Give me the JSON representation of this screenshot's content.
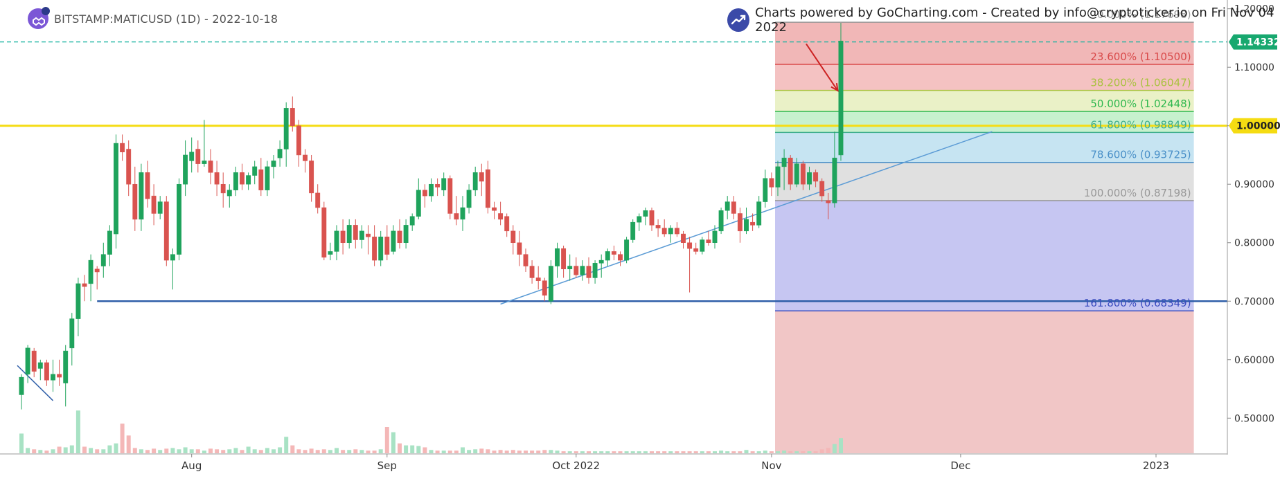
{
  "header": {
    "symbol_text": "BITSTAMP:MATICUSD (1D) - 2022-10-18",
    "credit_text": "Charts powered by GoCharting.com - Created by info@cryptoticker.io on Fri Nov 04 2022"
  },
  "colors": {
    "up": "#1fa35c",
    "down": "#d9534f",
    "vol_up": "#a8e2c4",
    "vol_down": "#f4b7b7",
    "price_line": "#17b3a0",
    "yellow": "#f5dc12",
    "trend": "#5b9bd5",
    "support": "#2e5ea8"
  },
  "chart_data": {
    "type": "candlestick",
    "title": "",
    "xlabel": "",
    "ylabel": "",
    "ylim": [
      0.44,
      1.215
    ],
    "y_ticks": [
      "1.20000",
      "1.10000",
      "1.00000",
      "0.90000",
      "0.80000",
      "0.70000",
      "0.60000",
      "0.50000"
    ],
    "y_tick_values": [
      1.2,
      1.1,
      1.0,
      0.9,
      0.8,
      0.7,
      0.6,
      0.5
    ],
    "x_ticks": [
      {
        "label": "Aug",
        "index": 27
      },
      {
        "label": "Sep",
        "index": 58
      },
      {
        "label": "Oct 2022",
        "index": 88
      },
      {
        "label": "Nov",
        "index": 119
      },
      {
        "label": "Dec",
        "index": 149
      },
      {
        "label": "2023",
        "index": 180
      }
    ],
    "last_price": {
      "value": 1.14332,
      "label": "1.14332"
    },
    "yellow_level": {
      "value": 1.0,
      "label": "1.00000"
    },
    "support_level": {
      "value": 0.7,
      "start_index": 12
    },
    "trendline": {
      "start": {
        "index": 76,
        "value": 0.695
      },
      "end": {
        "index": 154,
        "value": 0.99
      }
    },
    "small_trendline": {
      "start": {
        "index": 0,
        "value": 0.59
      },
      "end": {
        "index": 5,
        "value": 0.53
      }
    },
    "arrow": {
      "from": {
        "index": 124.5,
        "value": 1.14
      },
      "to": {
        "index": 129.5,
        "value": 1.06
      }
    },
    "fib": {
      "start_index": 120,
      "end_index": 186,
      "levels": [
        {
          "ratio": "0.000%",
          "value": 1.17698,
          "label": "0.000% (1.17698)",
          "color": "#999999"
        },
        {
          "ratio": "23.600%",
          "value": 1.105,
          "label": "23.600% (1.10500)",
          "color": "#d94a4a"
        },
        {
          "ratio": "38.200%",
          "value": 1.06047,
          "label": "38.200% (1.06047)",
          "color": "#a9c23f"
        },
        {
          "ratio": "50.000%",
          "value": 1.02448,
          "label": "50.000% (1.02448)",
          "color": "#2fb84f"
        },
        {
          "ratio": "61.800%",
          "value": 0.98849,
          "label": "61.800% (0.98849)",
          "color": "#3fae8e"
        },
        {
          "ratio": "78.600%",
          "value": 0.93725,
          "label": "78.600% (0.93725)",
          "color": "#4a90c8"
        },
        {
          "ratio": "100.000%",
          "value": 0.87198,
          "label": "100.000% (0.87198)",
          "color": "#999999"
        },
        {
          "ratio": "161.800%",
          "value": 0.68349,
          "label": "161.800% (0.68349)",
          "color": "#3a4dbf"
        }
      ],
      "zones": [
        {
          "from": 1.17698,
          "to": 1.105,
          "color": "#eeaaaa"
        },
        {
          "from": 1.105,
          "to": 1.06047,
          "color": "#f2b7b7"
        },
        {
          "from": 1.06047,
          "to": 1.02448,
          "color": "#e6efbd"
        },
        {
          "from": 1.02448,
          "to": 0.98849,
          "color": "#bdeec6"
        },
        {
          "from": 0.98849,
          "to": 0.93725,
          "color": "#bcdff0"
        },
        {
          "from": 0.93725,
          "to": 0.87198,
          "color": "#dadada"
        },
        {
          "from": 0.87198,
          "to": 0.68349,
          "color": "#bcbcf0"
        },
        {
          "from": 0.68349,
          "to": 0.44,
          "color": "#efbcbc"
        }
      ]
    },
    "candles": [
      [
        0.54,
        0.575,
        0.515,
        0.57,
        0.3
      ],
      [
        0.575,
        0.625,
        0.56,
        0.62,
        0.08
      ],
      [
        0.615,
        0.62,
        0.57,
        0.58,
        0.06
      ],
      [
        0.585,
        0.6,
        0.565,
        0.595,
        0.05
      ],
      [
        0.595,
        0.6,
        0.555,
        0.565,
        0.04
      ],
      [
        0.565,
        0.6,
        0.545,
        0.575,
        0.06
      ],
      [
        0.575,
        0.6,
        0.555,
        0.57,
        0.1
      ],
      [
        0.56,
        0.625,
        0.52,
        0.615,
        0.09
      ],
      [
        0.62,
        0.68,
        0.59,
        0.67,
        0.12
      ],
      [
        0.67,
        0.74,
        0.64,
        0.73,
        0.65
      ],
      [
        0.73,
        0.745,
        0.7,
        0.725,
        0.1
      ],
      [
        0.73,
        0.78,
        0.7,
        0.77,
        0.08
      ],
      [
        0.755,
        0.76,
        0.72,
        0.75,
        0.06
      ],
      [
        0.76,
        0.8,
        0.74,
        0.78,
        0.06
      ],
      [
        0.78,
        0.83,
        0.76,
        0.82,
        0.12
      ],
      [
        0.815,
        0.985,
        0.79,
        0.97,
        0.15
      ],
      [
        0.97,
        0.985,
        0.94,
        0.955,
        0.45
      ],
      [
        0.96,
        0.975,
        0.88,
        0.9,
        0.27
      ],
      [
        0.9,
        0.93,
        0.82,
        0.84,
        0.08
      ],
      [
        0.84,
        0.935,
        0.82,
        0.92,
        0.06
      ],
      [
        0.92,
        0.94,
        0.86,
        0.875,
        0.05
      ],
      [
        0.88,
        0.9,
        0.83,
        0.85,
        0.07
      ],
      [
        0.85,
        0.88,
        0.84,
        0.87,
        0.05
      ],
      [
        0.87,
        0.88,
        0.76,
        0.77,
        0.07
      ],
      [
        0.77,
        0.79,
        0.72,
        0.78,
        0.08
      ],
      [
        0.78,
        0.91,
        0.77,
        0.9,
        0.06
      ],
      [
        0.9,
        0.975,
        0.88,
        0.95,
        0.09
      ],
      [
        0.94,
        0.98,
        0.92,
        0.955,
        0.06
      ],
      [
        0.96,
        0.975,
        0.92,
        0.935,
        0.06
      ],
      [
        0.935,
        1.01,
        0.93,
        0.94,
        0.04
      ],
      [
        0.94,
        0.96,
        0.9,
        0.92,
        0.07
      ],
      [
        0.92,
        0.94,
        0.88,
        0.9,
        0.06
      ],
      [
        0.9,
        0.92,
        0.86,
        0.885,
        0.05
      ],
      [
        0.88,
        0.9,
        0.86,
        0.89,
        0.06
      ],
      [
        0.89,
        0.93,
        0.88,
        0.92,
        0.08
      ],
      [
        0.92,
        0.935,
        0.89,
        0.9,
        0.05
      ],
      [
        0.9,
        0.92,
        0.89,
        0.915,
        0.1
      ],
      [
        0.915,
        0.94,
        0.9,
        0.93,
        0.06
      ],
      [
        0.925,
        0.945,
        0.88,
        0.89,
        0.05
      ],
      [
        0.89,
        0.94,
        0.88,
        0.93,
        0.08
      ],
      [
        0.93,
        0.95,
        0.91,
        0.94,
        0.06
      ],
      [
        0.945,
        0.975,
        0.93,
        0.96,
        0.09
      ],
      [
        0.96,
        1.04,
        0.93,
        1.03,
        0.25
      ],
      [
        1.03,
        1.05,
        0.99,
        1.0,
        0.12
      ],
      [
        1.0,
        1.01,
        0.93,
        0.95,
        0.06
      ],
      [
        0.95,
        0.96,
        0.92,
        0.94,
        0.05
      ],
      [
        0.94,
        0.95,
        0.87,
        0.885,
        0.07
      ],
      [
        0.885,
        0.9,
        0.85,
        0.86,
        0.05
      ],
      [
        0.86,
        0.87,
        0.77,
        0.775,
        0.06
      ],
      [
        0.78,
        0.8,
        0.77,
        0.785,
        0.05
      ],
      [
        0.785,
        0.83,
        0.77,
        0.82,
        0.08
      ],
      [
        0.82,
        0.84,
        0.78,
        0.8,
        0.05
      ],
      [
        0.8,
        0.84,
        0.79,
        0.83,
        0.05
      ],
      [
        0.83,
        0.84,
        0.79,
        0.805,
        0.06
      ],
      [
        0.805,
        0.83,
        0.79,
        0.82,
        0.05
      ],
      [
        0.815,
        0.83,
        0.78,
        0.81,
        0.04
      ],
      [
        0.81,
        0.83,
        0.76,
        0.77,
        0.04
      ],
      [
        0.77,
        0.82,
        0.76,
        0.81,
        0.06
      ],
      [
        0.81,
        0.83,
        0.77,
        0.78,
        0.4
      ],
      [
        0.785,
        0.83,
        0.78,
        0.82,
        0.32
      ],
      [
        0.82,
        0.84,
        0.79,
        0.8,
        0.15
      ],
      [
        0.8,
        0.84,
        0.79,
        0.83,
        0.12
      ],
      [
        0.83,
        0.85,
        0.82,
        0.845,
        0.12
      ],
      [
        0.845,
        0.91,
        0.84,
        0.89,
        0.11
      ],
      [
        0.89,
        0.9,
        0.86,
        0.88,
        0.09
      ],
      [
        0.88,
        0.91,
        0.87,
        0.9,
        0.05
      ],
      [
        0.9,
        0.91,
        0.88,
        0.895,
        0.04
      ],
      [
        0.89,
        0.92,
        0.88,
        0.91,
        0.04
      ],
      [
        0.91,
        0.915,
        0.84,
        0.85,
        0.04
      ],
      [
        0.85,
        0.88,
        0.83,
        0.84,
        0.04
      ],
      [
        0.84,
        0.88,
        0.82,
        0.86,
        0.09
      ],
      [
        0.86,
        0.9,
        0.85,
        0.89,
        0.05
      ],
      [
        0.89,
        0.93,
        0.88,
        0.92,
        0.06
      ],
      [
        0.92,
        0.935,
        0.88,
        0.905,
        0.07
      ],
      [
        0.925,
        0.94,
        0.85,
        0.86,
        0.06
      ],
      [
        0.86,
        0.87,
        0.84,
        0.855,
        0.04
      ],
      [
        0.85,
        0.87,
        0.83,
        0.84,
        0.05
      ],
      [
        0.845,
        0.85,
        0.81,
        0.82,
        0.04
      ],
      [
        0.82,
        0.83,
        0.78,
        0.8,
        0.05
      ],
      [
        0.8,
        0.82,
        0.76,
        0.78,
        0.04
      ],
      [
        0.78,
        0.79,
        0.75,
        0.76,
        0.04
      ],
      [
        0.76,
        0.77,
        0.73,
        0.74,
        0.04
      ],
      [
        0.74,
        0.76,
        0.72,
        0.735,
        0.04
      ],
      [
        0.735,
        0.74,
        0.7,
        0.71,
        0.05
      ],
      [
        0.7,
        0.77,
        0.695,
        0.76,
        0.05
      ],
      [
        0.76,
        0.8,
        0.74,
        0.79,
        0.04
      ],
      [
        0.79,
        0.795,
        0.74,
        0.755,
        0.03
      ],
      [
        0.755,
        0.78,
        0.735,
        0.76,
        0.03
      ],
      [
        0.76,
        0.775,
        0.74,
        0.745,
        0.03
      ],
      [
        0.745,
        0.77,
        0.735,
        0.76,
        0.03
      ],
      [
        0.76,
        0.775,
        0.73,
        0.74,
        0.03
      ],
      [
        0.74,
        0.77,
        0.73,
        0.765,
        0.03
      ],
      [
        0.765,
        0.78,
        0.74,
        0.77,
        0.03
      ],
      [
        0.77,
        0.79,
        0.76,
        0.785,
        0.03
      ],
      [
        0.785,
        0.795,
        0.77,
        0.78,
        0.03
      ],
      [
        0.78,
        0.785,
        0.76,
        0.77,
        0.03
      ],
      [
        0.77,
        0.81,
        0.765,
        0.805,
        0.03
      ],
      [
        0.805,
        0.84,
        0.8,
        0.835,
        0.03
      ],
      [
        0.835,
        0.85,
        0.82,
        0.845,
        0.03
      ],
      [
        0.845,
        0.86,
        0.83,
        0.855,
        0.03
      ],
      [
        0.855,
        0.86,
        0.82,
        0.83,
        0.03
      ],
      [
        0.83,
        0.84,
        0.81,
        0.825,
        0.03
      ],
      [
        0.825,
        0.84,
        0.81,
        0.815,
        0.03
      ],
      [
        0.815,
        0.83,
        0.8,
        0.825,
        0.03
      ],
      [
        0.825,
        0.835,
        0.81,
        0.815,
        0.03
      ],
      [
        0.815,
        0.82,
        0.79,
        0.8,
        0.03
      ],
      [
        0.8,
        0.81,
        0.715,
        0.79,
        0.03
      ],
      [
        0.79,
        0.8,
        0.78,
        0.785,
        0.03
      ],
      [
        0.785,
        0.81,
        0.78,
        0.805,
        0.03
      ],
      [
        0.805,
        0.82,
        0.795,
        0.8,
        0.03
      ],
      [
        0.8,
        0.83,
        0.79,
        0.82,
        0.03
      ],
      [
        0.82,
        0.86,
        0.815,
        0.855,
        0.04
      ],
      [
        0.855,
        0.88,
        0.84,
        0.87,
        0.03
      ],
      [
        0.87,
        0.88,
        0.84,
        0.85,
        0.03
      ],
      [
        0.85,
        0.86,
        0.8,
        0.82,
        0.03
      ],
      [
        0.82,
        0.86,
        0.815,
        0.84,
        0.05
      ],
      [
        0.835,
        0.85,
        0.82,
        0.83,
        0.03
      ],
      [
        0.83,
        0.88,
        0.825,
        0.87,
        0.03
      ],
      [
        0.87,
        0.925,
        0.86,
        0.91,
        0.04
      ],
      [
        0.91,
        0.92,
        0.88,
        0.895,
        0.03
      ],
      [
        0.895,
        0.94,
        0.88,
        0.93,
        0.03
      ],
      [
        0.93,
        0.96,
        0.89,
        0.945,
        0.04
      ],
      [
        0.945,
        0.95,
        0.89,
        0.9,
        0.03
      ],
      [
        0.9,
        0.945,
        0.895,
        0.935,
        0.03
      ],
      [
        0.935,
        0.94,
        0.89,
        0.9,
        0.03
      ],
      [
        0.9,
        0.93,
        0.89,
        0.92,
        0.03
      ],
      [
        0.92,
        0.925,
        0.895,
        0.905,
        0.03
      ],
      [
        0.905,
        0.91,
        0.87,
        0.88,
        0.06
      ],
      [
        0.872,
        0.885,
        0.84,
        0.868,
        0.08
      ],
      [
        0.868,
        0.99,
        0.86,
        0.945,
        0.14
      ],
      [
        0.95,
        1.176,
        0.94,
        1.145,
        0.23
      ]
    ]
  }
}
